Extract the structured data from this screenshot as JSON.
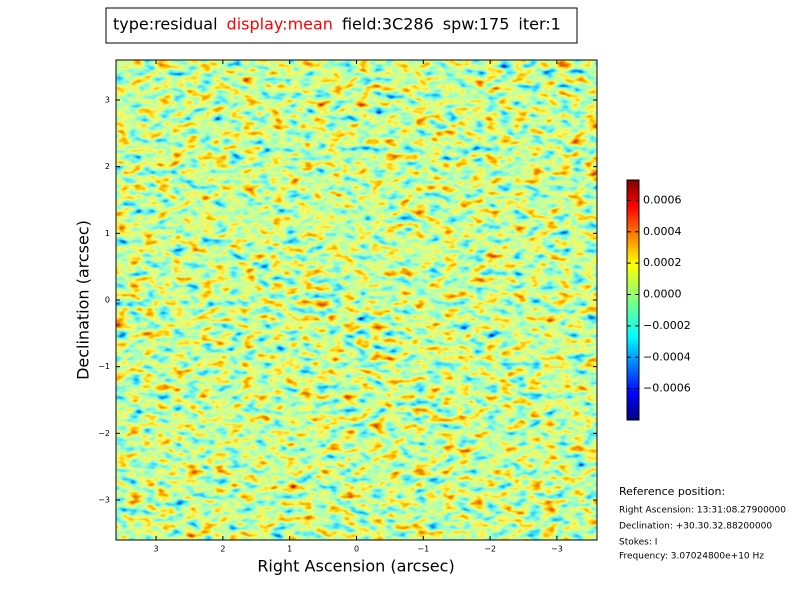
{
  "chart_data": {
    "type": "image",
    "title_parts": [
      {
        "text": "type:residual",
        "color": "#000000"
      },
      {
        "text": "display:mean",
        "color": "#ff0000"
      },
      {
        "text": "field:3C286",
        "color": "#000000"
      },
      {
        "text": "spw:175",
        "color": "#000000"
      },
      {
        "text": "iter:1",
        "color": "#000000"
      }
    ],
    "x_label": "Right Ascension (arcsec)",
    "y_label": "Declination (arcsec)",
    "xlim": [
      3.6,
      -3.6
    ],
    "xticks": [
      3,
      2,
      1,
      0,
      {
        "value": -1,
        "label": "−1"
      },
      {
        "value": -2,
        "label": "−2"
      },
      {
        "value": -3,
        "label": "−3"
      }
    ],
    "ylim": [
      -3.6,
      3.6
    ],
    "yticks": [
      {
        "value": -3,
        "label": "−3"
      },
      {
        "value": -2,
        "label": "−2"
      },
      {
        "value": -1,
        "label": "−1"
      },
      0,
      1,
      2,
      3
    ],
    "colormap": "jet",
    "clim": [
      -0.0008,
      0.00073
    ],
    "cbar_ticks": [
      {
        "value": -0.0006,
        "label": "−0.0006"
      },
      {
        "value": -0.0004,
        "label": "−0.0004"
      },
      {
        "value": -0.0002,
        "label": "−0.0002"
      },
      {
        "value": 0,
        "label": "0.0000"
      },
      {
        "value": 0.0002,
        "label": "0.0002"
      },
      {
        "value": 0.0004,
        "label": "0.0004"
      },
      {
        "value": 0.0006,
        "label": "0.0006"
      }
    ],
    "reference": [
      "Reference position:",
      "Right Ascension: 13:31:08.27900000",
      "Declination: +30.30.32.88200000",
      "Stokes: I",
      "Frequency: 3.07024800e+10 Hz"
    ]
  }
}
